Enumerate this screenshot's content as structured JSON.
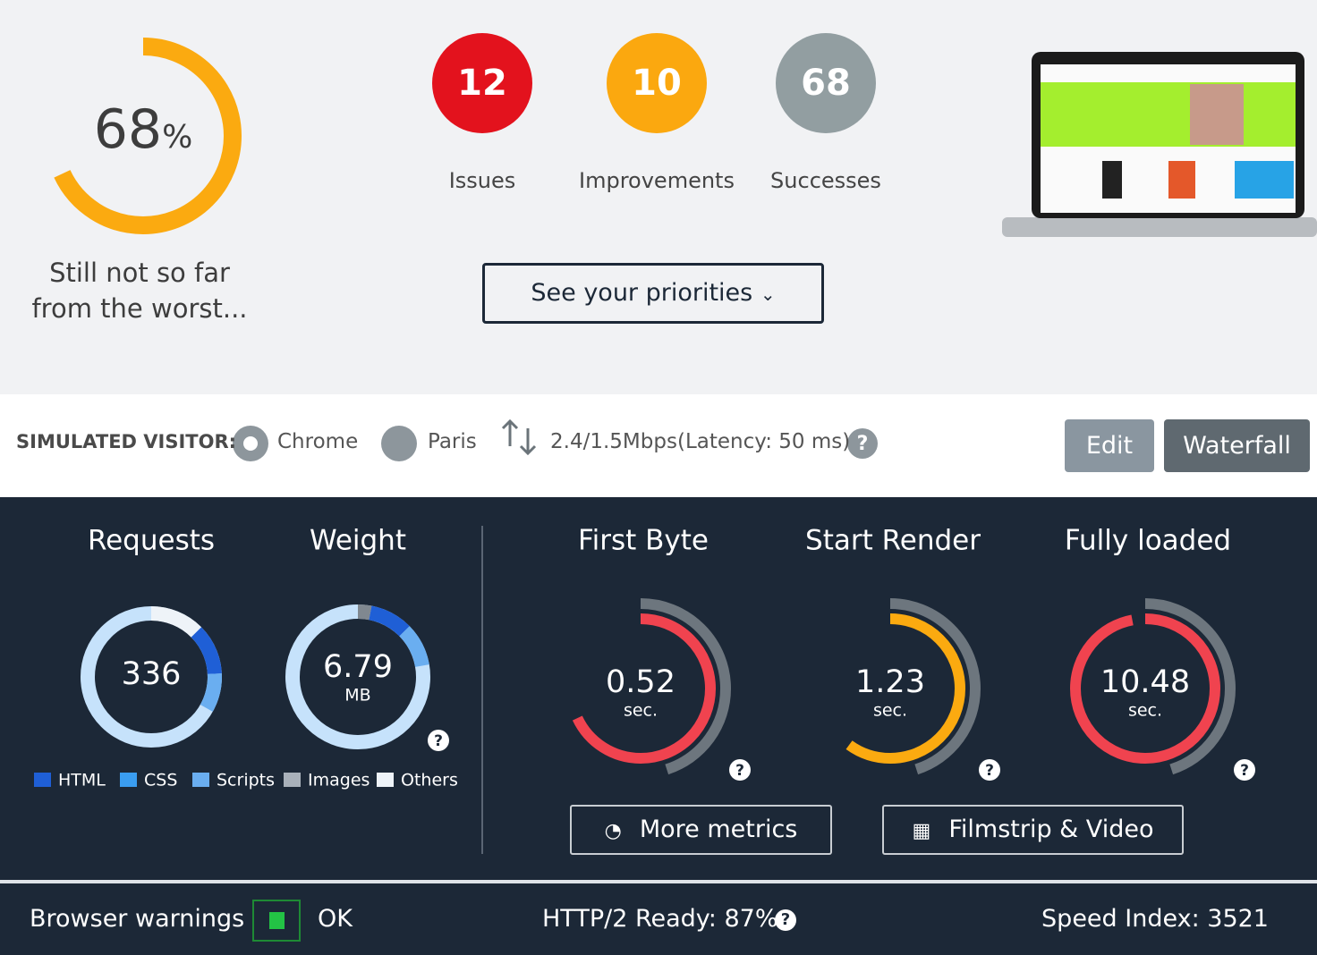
{
  "score": {
    "value": 68,
    "unit": "%",
    "color": "#fbaa10",
    "caption_line1": "Still not so far",
    "caption_line2": "from the worst..."
  },
  "summary": [
    {
      "count": 12,
      "label": "Issues",
      "color": "#e3121d"
    },
    {
      "count": 10,
      "label": "Improvements",
      "color": "#fba80f"
    },
    {
      "count": 68,
      "label": "Successes",
      "color": "#929ea1"
    }
  ],
  "priorities_button": "See your priorities",
  "visitor": {
    "label": "SIMULATED VISITOR:",
    "browser": "Chrome",
    "location": "Paris",
    "bandwidth": "2.4/1.5Mbps",
    "latency": "(Latency: 50 ms)"
  },
  "actions": [
    "Edit",
    "Waterfall"
  ],
  "resources": [
    {
      "title": "Requests",
      "value": "336"
    },
    {
      "title": "Weight",
      "value": "6.79",
      "unit": "MB"
    }
  ],
  "legend": [
    {
      "label": "HTML",
      "color": "#1f5fd6"
    },
    {
      "label": "CSS",
      "color": "#3a9df0"
    },
    {
      "label": "Scripts",
      "color": "#6aaef0"
    },
    {
      "label": "Images",
      "color": "#a9b1ba"
    },
    {
      "label": "Others",
      "color": "#eef3f8"
    }
  ],
  "timings": [
    {
      "title": "First Byte",
      "value": "0.52",
      "unit": "sec.",
      "color": "#f0434f"
    },
    {
      "title": "Start Render",
      "value": "1.23",
      "unit": "sec.",
      "color": "#fbaa10"
    },
    {
      "title": "Fully loaded",
      "value": "10.48",
      "unit": "sec.",
      "color": "#f0434f"
    }
  ],
  "buttons": [
    "More metrics",
    "Filmstrip & Video"
  ],
  "footer": {
    "warnings_label": "Browser warnings",
    "warnings_status": "OK",
    "http2": "HTTP/2 Ready: 87%",
    "speed_index": "Speed Index: 3521"
  }
}
